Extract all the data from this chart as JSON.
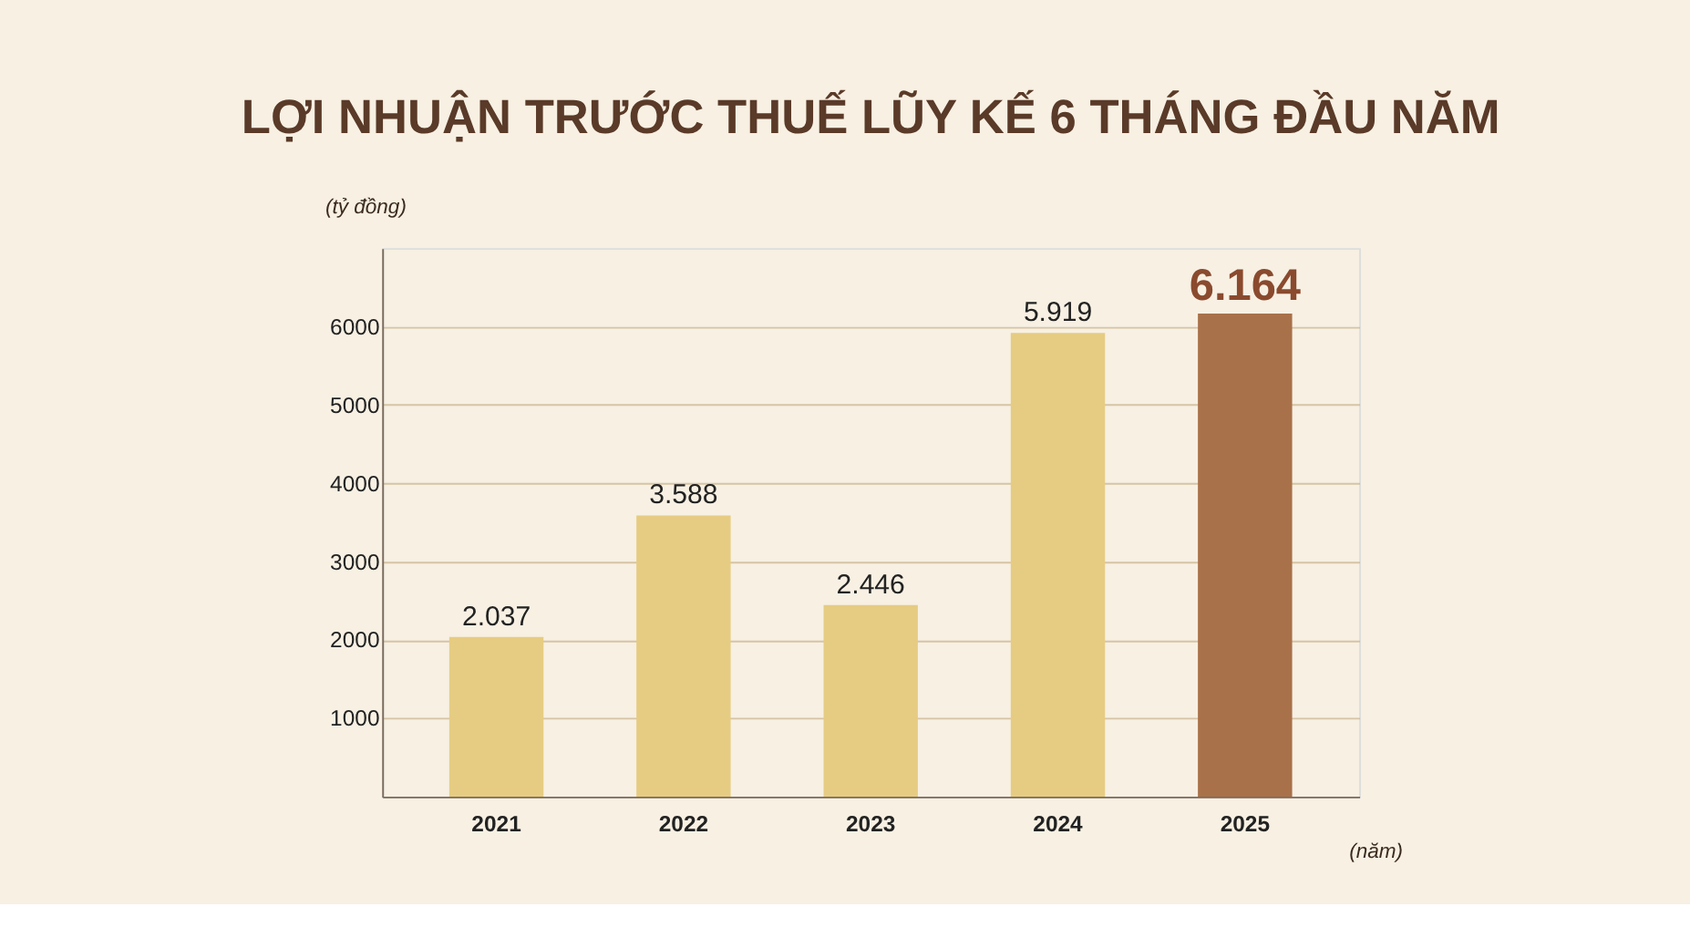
{
  "chart_data": {
    "type": "bar",
    "title": "LỢI NHUẬN TRƯỚC THUẾ LŨY KẾ 6 THÁNG ĐẦU NĂM",
    "ylabel": "(tỷ đồng)",
    "xlabel": "(năm)",
    "categories": [
      "2021",
      "2022",
      "2023",
      "2024",
      "2025"
    ],
    "values": [
      2037,
      3588,
      2446,
      5919,
      6164
    ],
    "value_labels": [
      "2.037",
      "3.588",
      "2.446",
      "5.919",
      "6.164"
    ],
    "colors": [
      "#e6cc82",
      "#e6cc82",
      "#e6cc82",
      "#e6cc82",
      "#a9714a"
    ],
    "ylim": [
      0,
      7000
    ],
    "yticks": [
      1000,
      2000,
      3000,
      4000,
      5000,
      6000
    ],
    "grid": "y"
  }
}
